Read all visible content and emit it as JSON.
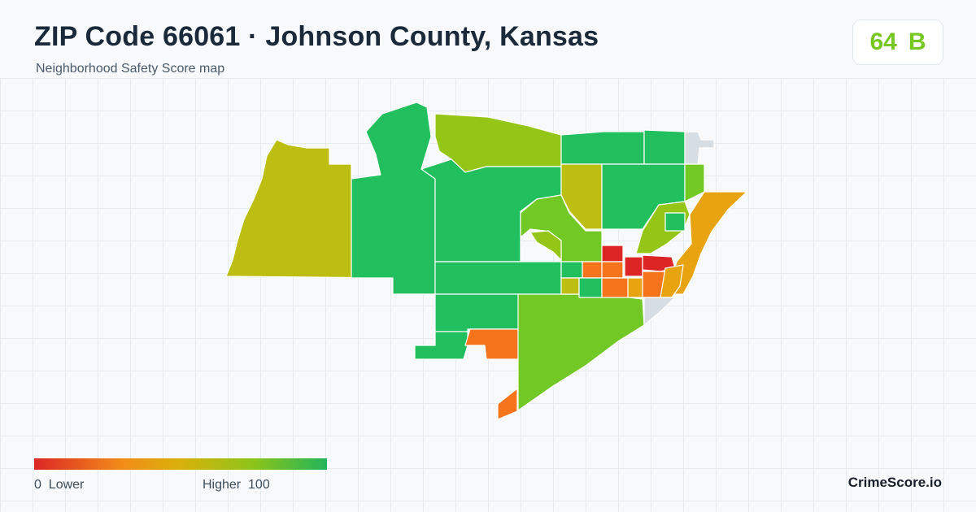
{
  "header": {
    "title": "ZIP Code 66061 · Johnson County, Kansas",
    "subtitle": "Neighborhood Safety Score map"
  },
  "score": {
    "value": "64",
    "grade": "B",
    "color": "#76c722"
  },
  "legend": {
    "min_value": "0",
    "min_label": "Lower",
    "max_label": "Higher",
    "max_value": "100",
    "gradient_colors": [
      "#dc2626",
      "#f28c18",
      "#d9b10a",
      "#8cc51a",
      "#22b45a"
    ]
  },
  "brand": "CrimeScore.io",
  "map": {
    "scale_colors": {
      "very_low": "#dc2626",
      "low": "#f5741c",
      "mid_low": "#e8a410",
      "mid": "#bcbf12",
      "mid_high": "#95c617",
      "high": "#72c925",
      "very_high": "#22bf5e",
      "no_data": "#d6dde3"
    }
  }
}
